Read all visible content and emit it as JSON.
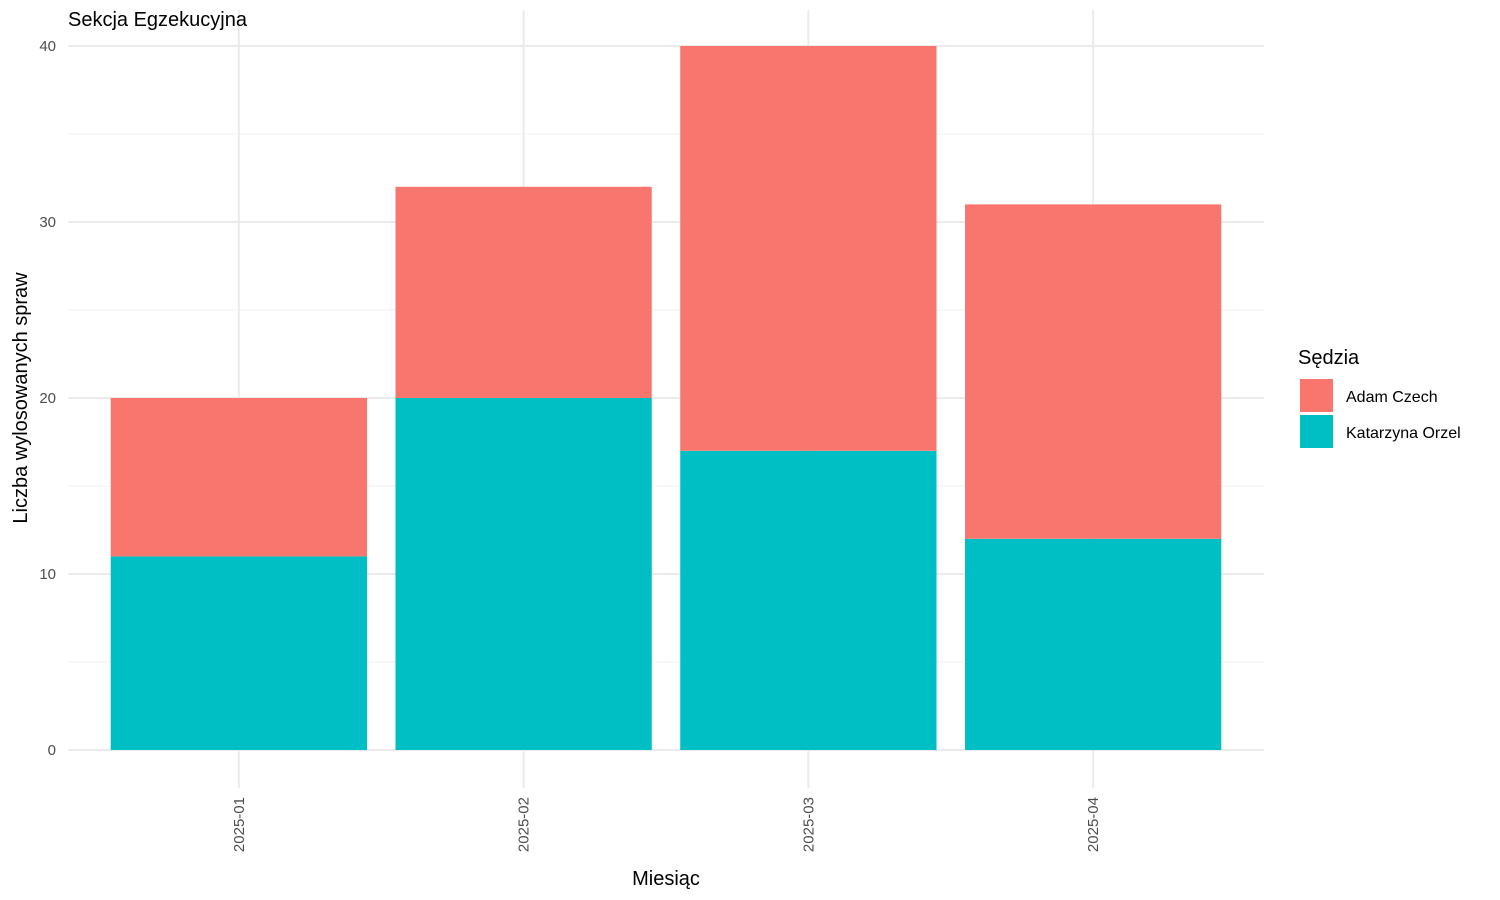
{
  "chart_data": {
    "type": "bar",
    "stacked": true,
    "title": "Sekcja Egzekucyjna",
    "xlabel": "Miesiąc",
    "ylabel": "Liczba wylosowanych spraw",
    "categories": [
      "2025-01",
      "2025-02",
      "2025-03",
      "2025-04"
    ],
    "series": [
      {
        "name": "Katarzyna Orzel",
        "values": [
          11,
          20,
          17,
          12
        ],
        "color": "#00BFC4"
      },
      {
        "name": "Adam Czech",
        "values": [
          9,
          12,
          23,
          19
        ],
        "color": "#F8766D"
      }
    ],
    "ylim": [
      0,
      40
    ],
    "yticks": [
      0,
      10,
      20,
      30,
      40
    ],
    "grid": true,
    "legend": {
      "title": "Sędzia",
      "placement": "right",
      "entries": [
        "Adam Czech",
        "Katarzyna Orzel"
      ]
    }
  }
}
